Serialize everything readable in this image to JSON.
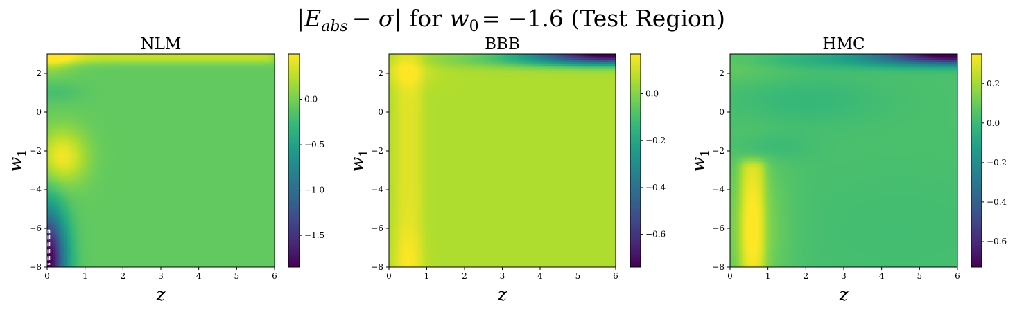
{
  "figure_title": "|E_abs − σ| for w_0 = −1.6 (Test Region)",
  "figure_title_parts": {
    "E": "E",
    "sub": "abs",
    "minus": "−",
    "sigma": "σ",
    "for": "for",
    "w": "w",
    "w_sub": "0",
    "eq": "= −1.6",
    "region": "(Test Region)"
  },
  "colormap": "viridis",
  "viridis_stops": [
    "#440154",
    "#482878",
    "#3e4989",
    "#31688e",
    "#26828e",
    "#1f9e89",
    "#35b779",
    "#6ece58",
    "#b5de2b",
    "#fde725"
  ],
  "chart_data": [
    {
      "type": "heatmap",
      "title": "NLM",
      "xlabel": "z",
      "ylabel": "w",
      "ylabel_sub": "1",
      "xlim": [
        0,
        6
      ],
      "ylim": [
        -8,
        3
      ],
      "xticks": [
        0,
        1,
        2,
        3,
        4,
        5,
        6
      ],
      "yticks": [
        -8,
        -6,
        -4,
        -2,
        0,
        2
      ],
      "clim": [
        -1.85,
        0.5
      ],
      "cbar_ticks": [
        -1.5,
        -1.0,
        -0.5,
        0.0
      ],
      "cbar_tick_labels": [
        "−1.5",
        "−1.0",
        "−0.5",
        "0.0"
      ],
      "field": {
        "base": -0.08,
        "terms": [
          {
            "kind": "box",
            "z1": 0,
            "z2": 6,
            "w1": 2.6,
            "w2": 3.2,
            "amp": 0.45
          },
          {
            "kind": "gauss",
            "z": 0.0,
            "w": 3.0,
            "sz": 0.5,
            "sw": 0.6,
            "amp": 0.5
          },
          {
            "kind": "gauss",
            "z": 0.4,
            "w": -2.3,
            "sz": 0.45,
            "sw": 1.0,
            "amp": 0.55
          },
          {
            "kind": "gauss",
            "z": 0.2,
            "w": 1.0,
            "sz": 0.5,
            "sw": 0.4,
            "amp": -0.12
          },
          {
            "kind": "gauss",
            "z": 0.0,
            "w": -7.6,
            "sz": 0.35,
            "sw": 1.8,
            "amp": -1.8
          }
        ]
      },
      "overlay": "dashed-box"
    },
    {
      "type": "heatmap",
      "title": "BBB",
      "xlabel": "z",
      "ylabel": "w",
      "ylabel_sub": "1",
      "xlim": [
        0,
        6
      ],
      "ylim": [
        -8,
        3
      ],
      "xticks": [
        0,
        1,
        2,
        3,
        4,
        5,
        6
      ],
      "yticks": [
        -8,
        -6,
        -4,
        -2,
        0,
        2
      ],
      "clim": [
        -0.74,
        0.17
      ],
      "cbar_ticks": [
        -0.6,
        -0.4,
        -0.2,
        0.0
      ],
      "cbar_tick_labels": [
        "−0.6",
        "−0.4",
        "−0.2",
        "0.0"
      ],
      "field": {
        "base": 0.06,
        "terms": [
          {
            "kind": "box",
            "z1": 0.2,
            "z2": 0.85,
            "w1": -8.2,
            "w2": 3.2,
            "amp": 0.07
          },
          {
            "kind": "gauss",
            "z": 0.45,
            "w": 2.2,
            "sz": 0.55,
            "sw": 0.6,
            "amp": 0.06
          },
          {
            "kind": "gauss",
            "z": 0.5,
            "w": -7.8,
            "sz": 0.3,
            "sw": 1.2,
            "amp": 0.04
          },
          {
            "kind": "gauss",
            "z": 6.0,
            "w": 3.0,
            "sz": 1.5,
            "sw": 0.35,
            "amp": -0.8
          },
          {
            "kind": "gauss",
            "z": 4.0,
            "w": 2.7,
            "sz": 2.0,
            "sw": 0.3,
            "amp": -0.12
          }
        ]
      }
    },
    {
      "type": "heatmap",
      "title": "HMC",
      "xlabel": "z",
      "ylabel": "w",
      "ylabel_sub": "1",
      "xlim": [
        0,
        6
      ],
      "ylim": [
        -8,
        3
      ],
      "xticks": [
        0,
        1,
        2,
        3,
        4,
        5,
        6
      ],
      "yticks": [
        -8,
        -6,
        -4,
        -2,
        0,
        2
      ],
      "clim": [
        -0.73,
        0.35
      ],
      "cbar_ticks": [
        -0.6,
        -0.4,
        -0.2,
        0.0,
        0.2
      ],
      "cbar_tick_labels": [
        "−0.6",
        "−0.4",
        "−0.2",
        "0.0",
        "0.2"
      ],
      "field": {
        "base": 0.04,
        "terms": [
          {
            "kind": "box",
            "z1": 0.3,
            "z2": 0.9,
            "w1": -8.2,
            "w2": -2.5,
            "amp": 0.22
          },
          {
            "kind": "gauss",
            "z": 0.6,
            "w": -6.0,
            "sz": 0.6,
            "sw": 2.5,
            "amp": 0.12
          },
          {
            "kind": "gauss",
            "z": 0.0,
            "w": 2.5,
            "sz": 1.0,
            "sw": 0.7,
            "amp": 0.05
          },
          {
            "kind": "gauss",
            "z": 2.0,
            "w": 0.6,
            "sz": 1.5,
            "sw": 0.9,
            "amp": -0.05
          },
          {
            "kind": "gauss",
            "z": 1.0,
            "w": -1.8,
            "sz": 0.7,
            "sw": 0.5,
            "amp": -0.05
          },
          {
            "kind": "gauss",
            "z": 4.5,
            "w": -6.0,
            "sz": 2.5,
            "sw": 2.5,
            "amp": -0.02
          },
          {
            "kind": "gauss",
            "z": 6.0,
            "w": 3.0,
            "sz": 1.4,
            "sw": 0.35,
            "amp": -0.8
          },
          {
            "kind": "gauss",
            "z": 4.0,
            "w": 2.7,
            "sz": 2.2,
            "sw": 0.3,
            "amp": -0.12
          }
        ]
      }
    }
  ]
}
